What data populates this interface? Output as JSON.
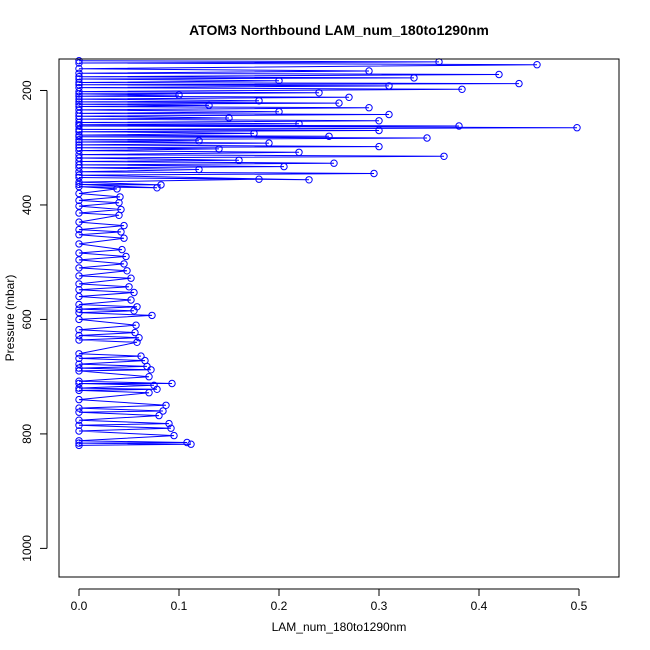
{
  "chart_data": {
    "type": "scatter",
    "title": "ATOM3 Northbound LAM_num_180to1290nm",
    "xlabel": "LAM_num_180to1290nm",
    "ylabel": "Pressure (mbar)",
    "xlim": [
      -0.02,
      0.54
    ],
    "ylim": [
      1050,
      145
    ],
    "y_inverted": true,
    "x_ticks": [
      0.0,
      0.1,
      0.2,
      0.3,
      0.4,
      0.5
    ],
    "x_tick_labels": [
      "0.0",
      "0.1",
      "0.2",
      "0.3",
      "0.4",
      "0.5"
    ],
    "y_ticks": [
      200,
      400,
      600,
      800,
      1000
    ],
    "y_tick_labels": [
      "200",
      "400",
      "600",
      "800",
      "1000"
    ],
    "grid": false,
    "legend": "none",
    "colors": {
      "series": "#0000ff",
      "axis": "#000000"
    },
    "series": [
      {
        "marker": "open-circle",
        "connected": true,
        "points": [
          [
            0.0,
            820
          ],
          [
            0.112,
            818
          ],
          [
            0.0,
            816
          ],
          [
            0.108,
            815
          ],
          [
            0.0,
            812
          ],
          [
            0.095,
            803
          ],
          [
            0.0,
            795
          ],
          [
            0.092,
            790
          ],
          [
            0.0,
            785
          ],
          [
            0.09,
            782
          ],
          [
            0.0,
            776
          ],
          [
            0.08,
            768
          ],
          [
            0.0,
            762
          ],
          [
            0.084,
            760
          ],
          [
            0.0,
            755
          ],
          [
            0.087,
            750
          ],
          [
            0.0,
            740
          ],
          [
            0.07,
            728
          ],
          [
            0.0,
            724
          ],
          [
            0.078,
            722
          ],
          [
            0.0,
            720
          ],
          [
            0.075,
            715
          ],
          [
            0.0,
            712
          ],
          [
            0.093,
            712
          ],
          [
            0.0,
            708
          ],
          [
            0.07,
            700
          ],
          [
            0.0,
            690
          ],
          [
            0.072,
            688
          ],
          [
            0.0,
            685
          ],
          [
            0.068,
            682
          ],
          [
            0.0,
            678
          ],
          [
            0.066,
            672
          ],
          [
            0.0,
            668
          ],
          [
            0.062,
            664
          ],
          [
            0.0,
            660
          ],
          [
            0.058,
            640
          ],
          [
            0.0,
            636
          ],
          [
            0.06,
            632
          ],
          [
            0.0,
            628
          ],
          [
            0.056,
            623
          ],
          [
            0.0,
            618
          ],
          [
            0.057,
            610
          ],
          [
            0.0,
            600
          ],
          [
            0.073,
            593
          ],
          [
            0.0,
            588
          ],
          [
            0.055,
            585
          ],
          [
            0.0,
            582
          ],
          [
            0.058,
            578
          ],
          [
            0.0,
            574
          ],
          [
            0.052,
            566
          ],
          [
            0.0,
            560
          ],
          [
            0.055,
            553
          ],
          [
            0.0,
            548
          ],
          [
            0.05,
            543
          ],
          [
            0.0,
            538
          ],
          [
            0.052,
            528
          ],
          [
            0.0,
            524
          ],
          [
            0.048,
            515
          ],
          [
            0.0,
            510
          ],
          [
            0.045,
            503
          ],
          [
            0.0,
            496
          ],
          [
            0.047,
            490
          ],
          [
            0.0,
            484
          ],
          [
            0.043,
            478
          ],
          [
            0.0,
            468
          ],
          [
            0.045,
            458
          ],
          [
            0.0,
            452
          ],
          [
            0.042,
            447
          ],
          [
            0.0,
            443
          ],
          [
            0.045,
            436
          ],
          [
            0.0,
            430
          ],
          [
            0.04,
            418
          ],
          [
            0.0,
            414
          ],
          [
            0.042,
            408
          ],
          [
            0.0,
            402
          ],
          [
            0.04,
            396
          ],
          [
            0.0,
            392
          ],
          [
            0.041,
            386
          ],
          [
            0.0,
            380
          ],
          [
            0.038,
            372
          ],
          [
            0.0,
            368
          ],
          [
            0.078,
            370
          ],
          [
            0.0,
            364
          ],
          [
            0.082,
            365
          ],
          [
            0.0,
            360
          ],
          [
            0.18,
            355
          ],
          [
            0.0,
            352
          ],
          [
            0.23,
            356
          ],
          [
            0.0,
            348
          ],
          [
            0.295,
            345
          ],
          [
            0.0,
            342
          ],
          [
            0.12,
            338
          ],
          [
            0.0,
            335
          ],
          [
            0.205,
            333
          ],
          [
            0.0,
            330
          ],
          [
            0.255,
            327
          ],
          [
            0.0,
            324
          ],
          [
            0.16,
            322
          ],
          [
            0.0,
            318
          ],
          [
            0.365,
            315
          ],
          [
            0.0,
            312
          ],
          [
            0.22,
            308
          ],
          [
            0.0,
            305
          ],
          [
            0.14,
            302
          ],
          [
            0.0,
            300
          ],
          [
            0.3,
            298
          ],
          [
            0.0,
            295
          ],
          [
            0.19,
            292
          ],
          [
            0.0,
            290
          ],
          [
            0.12,
            288
          ],
          [
            0.0,
            286
          ],
          [
            0.348,
            283
          ],
          [
            0.0,
            281
          ],
          [
            0.25,
            280
          ],
          [
            0.0,
            278
          ],
          [
            0.175,
            275
          ],
          [
            0.0,
            272
          ],
          [
            0.3,
            270
          ],
          [
            0.0,
            268
          ],
          [
            0.498,
            265
          ],
          [
            0.0,
            262
          ],
          [
            0.38,
            262
          ],
          [
            0.0,
            260
          ],
          [
            0.22,
            258
          ],
          [
            0.0,
            256
          ],
          [
            0.3,
            253
          ],
          [
            0.0,
            250
          ],
          [
            0.15,
            248
          ],
          [
            0.0,
            245
          ],
          [
            0.31,
            242
          ],
          [
            0.0,
            240
          ],
          [
            0.2,
            237
          ],
          [
            0.0,
            234
          ],
          [
            0.29,
            230
          ],
          [
            0.0,
            228
          ],
          [
            0.13,
            226
          ],
          [
            0.0,
            224
          ],
          [
            0.26,
            222
          ],
          [
            0.0,
            220
          ],
          [
            0.18,
            218
          ],
          [
            0.0,
            215
          ],
          [
            0.27,
            212
          ],
          [
            0.0,
            210
          ],
          [
            0.1,
            208
          ],
          [
            0.0,
            206
          ],
          [
            0.24,
            204
          ],
          [
            0.0,
            202
          ],
          [
            0.383,
            198
          ],
          [
            0.0,
            195
          ],
          [
            0.31,
            192
          ],
          [
            0.0,
            190
          ],
          [
            0.44,
            188
          ],
          [
            0.0,
            186
          ],
          [
            0.2,
            183
          ],
          [
            0.0,
            180
          ],
          [
            0.335,
            178
          ],
          [
            0.0,
            176
          ],
          [
            0.42,
            172
          ],
          [
            0.0,
            170
          ],
          [
            0.29,
            166
          ],
          [
            0.0,
            162
          ],
          [
            0.458,
            155
          ],
          [
            0.0,
            152
          ],
          [
            0.36,
            150
          ],
          [
            0.0,
            148
          ]
        ]
      }
    ]
  }
}
